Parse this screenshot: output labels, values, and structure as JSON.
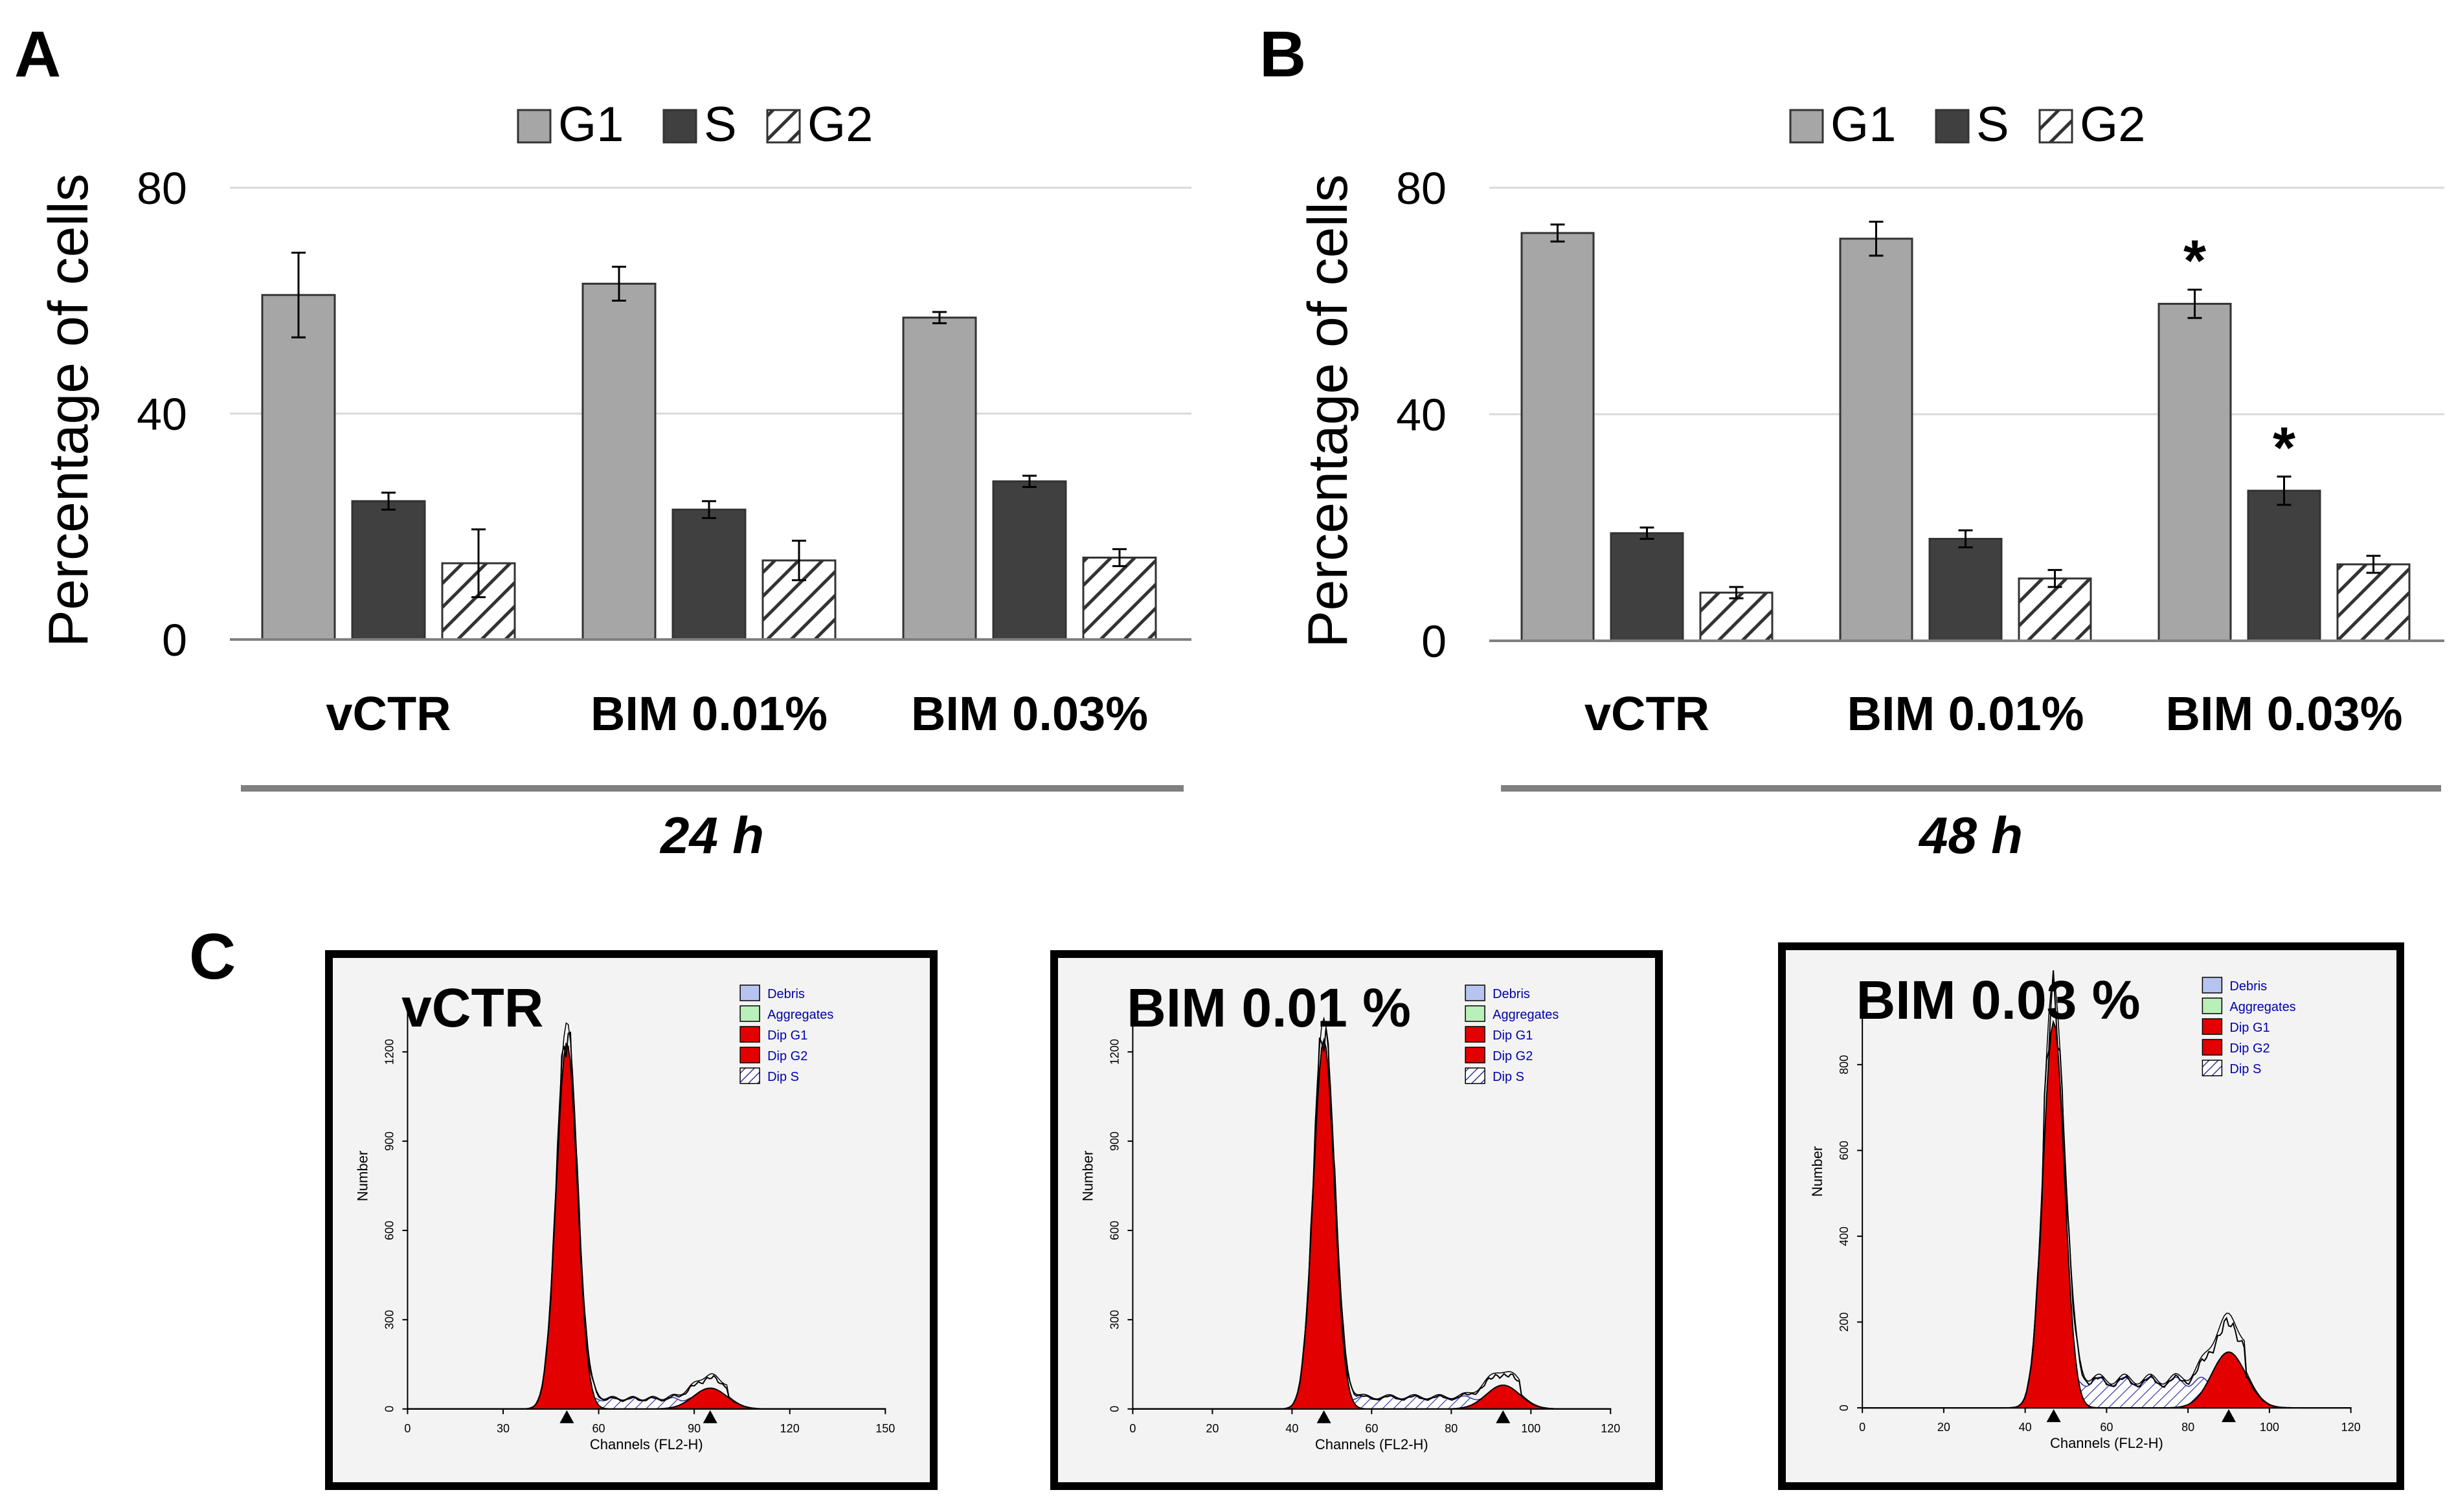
{
  "figure": {
    "panel_labels": [
      "A",
      "B",
      "C"
    ],
    "colors": {
      "g1": "#a6a6a6",
      "s": "#404040",
      "g2_hatch": "#333333",
      "axis": "#7f7f7f",
      "gridline": "#d9d9d9",
      "flow_fill": "#e30000",
      "flow_bg": "#f3f3f3",
      "legend_debris": "#b8c4f0",
      "legend_aggregates": "#b9f0b9"
    }
  },
  "chart_data": [
    {
      "panel": "A",
      "type": "bar",
      "title": "",
      "ylabel": "Percentage of cells",
      "xlabel": "24 h",
      "ylim": [
        0,
        80
      ],
      "yticks": [
        0,
        40,
        80
      ],
      "grid": true,
      "legend_position": "top-center",
      "categories": [
        "vCTR",
        "BIM 0.01%",
        "BIM 0.03%"
      ],
      "series": [
        {
          "name": "G1",
          "values": [
            61,
            63,
            57
          ],
          "errors": [
            7.5,
            3,
            1
          ]
        },
        {
          "name": "S",
          "values": [
            24.5,
            23,
            28
          ],
          "errors": [
            1.5,
            1.5,
            1
          ]
        },
        {
          "name": "G2",
          "values": [
            13.5,
            14,
            14.5
          ],
          "errors": [
            6,
            3.5,
            1.5
          ]
        }
      ],
      "annotations": [],
      "legend_labels": [
        "G1",
        "S",
        "G2"
      ]
    },
    {
      "panel": "B",
      "type": "bar",
      "title": "",
      "ylabel": "Percentage of cells",
      "xlabel": "48 h",
      "ylim": [
        0,
        80
      ],
      "yticks": [
        0,
        40,
        80
      ],
      "grid": true,
      "legend_position": "top-center",
      "categories": [
        "vCTR",
        "BIM 0.01%",
        "BIM 0.03%"
      ],
      "series": [
        {
          "name": "G1",
          "values": [
            72,
            71,
            59.5
          ],
          "errors": [
            1.5,
            3,
            2.5
          ]
        },
        {
          "name": "S",
          "values": [
            19,
            18,
            26.5
          ],
          "errors": [
            1,
            1.5,
            2.5
          ]
        },
        {
          "name": "G2",
          "values": [
            8.5,
            11,
            13.5
          ],
          "errors": [
            1,
            1.5,
            1.5
          ]
        }
      ],
      "annotations": [
        {
          "series": "G1",
          "category": "BIM 0.03%",
          "text": "*"
        },
        {
          "series": "S",
          "category": "BIM 0.03%",
          "text": "*"
        }
      ],
      "legend_labels": [
        "G1",
        "S",
        "G2"
      ]
    },
    {
      "panel": "C",
      "type": "line",
      "title": "vCTR",
      "xlabel": "Channels (FL2-H)",
      "ylabel": "Number",
      "xlim": [
        0,
        150
      ],
      "ylim": [
        0,
        1350
      ],
      "xticks": [
        0,
        30,
        60,
        90,
        120,
        150
      ],
      "yticks": [
        0,
        300,
        600,
        900,
        1200
      ],
      "legend": [
        "Debris",
        "Aggregates",
        "Dip G1",
        "Dip G2",
        "Dip S"
      ],
      "peaks": {
        "g1_channel": 50,
        "g1_height": 1230,
        "g2_channel": 95,
        "g2_height": 70
      },
      "markers": [
        50,
        95
      ]
    },
    {
      "panel": "C",
      "type": "line",
      "title": "BIM 0.01 %",
      "xlabel": "Channels (FL2-H)",
      "ylabel": "Number",
      "xlim": [
        0,
        120
      ],
      "ylim": [
        0,
        1350
      ],
      "xticks": [
        0,
        20,
        40,
        60,
        80,
        100,
        120
      ],
      "yticks": [
        0,
        300,
        600,
        900,
        1200
      ],
      "legend": [
        "Debris",
        "Aggregates",
        "Dip G1",
        "Dip G2",
        "Dip S"
      ],
      "peaks": {
        "g1_channel": 48,
        "g1_height": 1240,
        "g2_channel": 93,
        "g2_height": 80
      },
      "markers": [
        48,
        93
      ]
    },
    {
      "panel": "C",
      "type": "line",
      "title": "BIM 0.03 %",
      "xlabel": "Channels (FL2-H)",
      "ylabel": "Number",
      "xlim": [
        0,
        120
      ],
      "ylim": [
        0,
        950
      ],
      "xticks": [
        0,
        20,
        40,
        60,
        80,
        100,
        120
      ],
      "yticks": [
        0,
        200,
        400,
        600,
        800
      ],
      "legend": [
        "Debris",
        "Aggregates",
        "Dip G1",
        "Dip G2",
        "Dip S"
      ],
      "peaks": {
        "g1_channel": 47,
        "g1_height": 900,
        "g2_channel": 90,
        "g2_height": 130
      },
      "markers": [
        47,
        90
      ]
    }
  ]
}
